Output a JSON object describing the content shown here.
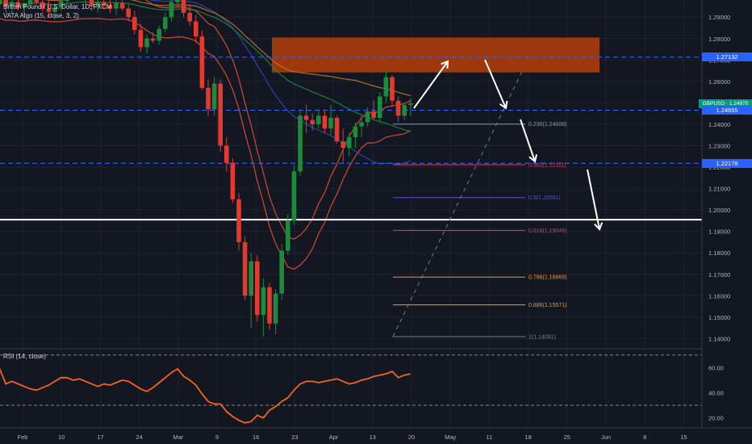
{
  "legend": {
    "line1": "British Pound / U.S. Dollar, 1D, FXCM",
    "line2": "VATA Algo (15, close, 3, 2)",
    "rsi": "RSI (14, close)"
  },
  "price_labels": [
    {
      "text": "1.27132",
      "value": 1.27132,
      "color": "#2962ff"
    },
    {
      "text": "GBPUSD · 1.24970",
      "value": 1.2497,
      "color": "#089981"
    },
    {
      "text": "1.24655",
      "value": 1.24655,
      "color": "#2962ff"
    },
    {
      "text": "1.22178",
      "value": 1.22178,
      "color": "#2962ff"
    }
  ],
  "chart_data": [
    {
      "type": "candlestick",
      "symbol": "GBPUSD",
      "x_labels": [
        "Feb",
        "10",
        "17",
        "24",
        "Mar",
        "9",
        "16",
        "23",
        "Apr",
        "13",
        "20",
        "May",
        "11",
        "18",
        "25",
        "Jun",
        "8",
        "15"
      ],
      "y_ticks": [
        1.29,
        1.28,
        1.27,
        1.26,
        1.25,
        1.24,
        1.23,
        1.22,
        1.21,
        1.2,
        1.19,
        1.18,
        1.17,
        1.16,
        1.15,
        1.14
      ],
      "ylim": [
        1.136,
        1.298
      ],
      "horizontal_lines": [
        {
          "value": 1.27132,
          "style": "dashed",
          "color": "#2962ff"
        },
        {
          "value": 1.24655,
          "style": "dashed",
          "color": "#2962ff"
        },
        {
          "value": 1.22178,
          "style": "dashed",
          "color": "#2962ff"
        },
        {
          "value": 1.1955,
          "style": "solid",
          "color": "#ffffff"
        }
      ],
      "supply_zone": {
        "from": 1.2642,
        "to": 1.2805,
        "color": "#a83c0a"
      },
      "fibonacci": [
        {
          "label": "0.236(1.24008)",
          "value": 1.24008,
          "color": "#9598a1"
        },
        {
          "label": "0.382(1.22111)",
          "value": 1.22111,
          "color": "#f23645"
        },
        {
          "label": "0.5(1.20581)",
          "value": 1.20581,
          "color": "#5b4fd6"
        },
        {
          "label": "0.618(1.19049)",
          "value": 1.19049,
          "color": "#f23645"
        },
        {
          "label": "0.786(1.16869)",
          "value": 1.16869,
          "color": "#ff9800"
        },
        {
          "label": "0.886(1.15571)",
          "value": 1.15571,
          "color": "#ff9800"
        },
        {
          "label": "1(1.14091)",
          "value": 1.14091,
          "color": "#787b86"
        }
      ],
      "candles": [
        {
          "o": 1.299,
          "h": 1.303,
          "l": 1.293,
          "c": 1.296
        },
        {
          "o": 1.296,
          "h": 1.301,
          "l": 1.293,
          "c": 1.2985
        },
        {
          "o": 1.2985,
          "h": 1.3,
          "l": 1.292,
          "c": 1.295
        },
        {
          "o": 1.295,
          "h": 1.302,
          "l": 1.292,
          "c": 1.297
        },
        {
          "o": 1.297,
          "h": 1.299,
          "l": 1.293,
          "c": 1.2945
        },
        {
          "o": 1.2945,
          "h": 1.297,
          "l": 1.291,
          "c": 1.296
        },
        {
          "o": 1.296,
          "h": 1.3,
          "l": 1.294,
          "c": 1.299
        },
        {
          "o": 1.299,
          "h": 1.303,
          "l": 1.296,
          "c": 1.297
        },
        {
          "o": 1.297,
          "h": 1.3,
          "l": 1.2925,
          "c": 1.294
        },
        {
          "o": 1.294,
          "h": 1.298,
          "l": 1.29,
          "c": 1.2925
        },
        {
          "o": 1.2925,
          "h": 1.296,
          "l": 1.289,
          "c": 1.2945
        },
        {
          "o": 1.2945,
          "h": 1.299,
          "l": 1.293,
          "c": 1.2975
        },
        {
          "o": 1.2975,
          "h": 1.302,
          "l": 1.296,
          "c": 1.3
        },
        {
          "o": 1.3,
          "h": 1.305,
          "l": 1.298,
          "c": 1.303
        },
        {
          "o": 1.303,
          "h": 1.306,
          "l": 1.299,
          "c": 1.301
        },
        {
          "o": 1.301,
          "h": 1.304,
          "l": 1.296,
          "c": 1.298
        },
        {
          "o": 1.298,
          "h": 1.3,
          "l": 1.293,
          "c": 1.295
        },
        {
          "o": 1.295,
          "h": 1.299,
          "l": 1.292,
          "c": 1.297
        },
        {
          "o": 1.297,
          "h": 1.301,
          "l": 1.294,
          "c": 1.2955
        },
        {
          "o": 1.2955,
          "h": 1.299,
          "l": 1.292,
          "c": 1.294
        },
        {
          "o": 1.294,
          "h": 1.298,
          "l": 1.291,
          "c": 1.2965
        },
        {
          "o": 1.2965,
          "h": 1.3,
          "l": 1.293,
          "c": 1.294
        },
        {
          "o": 1.294,
          "h": 1.296,
          "l": 1.288,
          "c": 1.29
        },
        {
          "o": 1.29,
          "h": 1.293,
          "l": 1.282,
          "c": 1.284
        },
        {
          "o": 1.284,
          "h": 1.287,
          "l": 1.274,
          "c": 1.276
        },
        {
          "o": 1.276,
          "h": 1.282,
          "l": 1.273,
          "c": 1.28
        },
        {
          "o": 1.28,
          "h": 1.283,
          "l": 1.278,
          "c": 1.279
        },
        {
          "o": 1.279,
          "h": 1.286,
          "l": 1.277,
          "c": 1.2845
        },
        {
          "o": 1.2845,
          "h": 1.292,
          "l": 1.283,
          "c": 1.29
        },
        {
          "o": 1.29,
          "h": 1.299,
          "l": 1.288,
          "c": 1.297
        },
        {
          "o": 1.297,
          "h": 1.306,
          "l": 1.295,
          "c": 1.301
        },
        {
          "o": 1.301,
          "h": 1.304,
          "l": 1.29,
          "c": 1.292
        },
        {
          "o": 1.292,
          "h": 1.296,
          "l": 1.286,
          "c": 1.288
        },
        {
          "o": 1.288,
          "h": 1.291,
          "l": 1.278,
          "c": 1.281
        },
        {
          "o": 1.281,
          "h": 1.284,
          "l": 1.256,
          "c": 1.257
        },
        {
          "o": 1.257,
          "h": 1.261,
          "l": 1.244,
          "c": 1.247
        },
        {
          "o": 1.247,
          "h": 1.262,
          "l": 1.244,
          "c": 1.259
        },
        {
          "o": 1.259,
          "h": 1.261,
          "l": 1.227,
          "c": 1.23
        },
        {
          "o": 1.23,
          "h": 1.234,
          "l": 1.218,
          "c": 1.222
        },
        {
          "o": 1.222,
          "h": 1.224,
          "l": 1.203,
          "c": 1.205
        },
        {
          "o": 1.205,
          "h": 1.208,
          "l": 1.181,
          "c": 1.185
        },
        {
          "o": 1.185,
          "h": 1.188,
          "l": 1.158,
          "c": 1.16
        },
        {
          "o": 1.16,
          "h": 1.18,
          "l": 1.145,
          "c": 1.176
        },
        {
          "o": 1.176,
          "h": 1.179,
          "l": 1.148,
          "c": 1.151
        },
        {
          "o": 1.151,
          "h": 1.168,
          "l": 1.141,
          "c": 1.164
        },
        {
          "o": 1.164,
          "h": 1.166,
          "l": 1.144,
          "c": 1.147
        },
        {
          "o": 1.147,
          "h": 1.163,
          "l": 1.142,
          "c": 1.161
        },
        {
          "o": 1.161,
          "h": 1.184,
          "l": 1.158,
          "c": 1.181
        },
        {
          "o": 1.181,
          "h": 1.198,
          "l": 1.179,
          "c": 1.195
        },
        {
          "o": 1.195,
          "h": 1.221,
          "l": 1.193,
          "c": 1.218
        },
        {
          "o": 1.218,
          "h": 1.247,
          "l": 1.216,
          "c": 1.244
        },
        {
          "o": 1.244,
          "h": 1.249,
          "l": 1.236,
          "c": 1.242
        },
        {
          "o": 1.242,
          "h": 1.245,
          "l": 1.237,
          "c": 1.24
        },
        {
          "o": 1.24,
          "h": 1.247,
          "l": 1.238,
          "c": 1.244
        },
        {
          "o": 1.244,
          "h": 1.247,
          "l": 1.236,
          "c": 1.238
        },
        {
          "o": 1.238,
          "h": 1.249,
          "l": 1.235,
          "c": 1.243
        },
        {
          "o": 1.243,
          "h": 1.244,
          "l": 1.231,
          "c": 1.232
        },
        {
          "o": 1.232,
          "h": 1.238,
          "l": 1.222,
          "c": 1.229
        },
        {
          "o": 1.229,
          "h": 1.236,
          "l": 1.225,
          "c": 1.234
        },
        {
          "o": 1.234,
          "h": 1.241,
          "l": 1.229,
          "c": 1.239
        },
        {
          "o": 1.239,
          "h": 1.244,
          "l": 1.234,
          "c": 1.241
        },
        {
          "o": 1.241,
          "h": 1.248,
          "l": 1.239,
          "c": 1.246
        },
        {
          "o": 1.246,
          "h": 1.251,
          "l": 1.242,
          "c": 1.243
        },
        {
          "o": 1.243,
          "h": 1.255,
          "l": 1.241,
          "c": 1.253
        },
        {
          "o": 1.253,
          "h": 1.265,
          "l": 1.25,
          "c": 1.262
        },
        {
          "o": 1.262,
          "h": 1.263,
          "l": 1.248,
          "c": 1.251
        },
        {
          "o": 1.251,
          "h": 1.253,
          "l": 1.241,
          "c": 1.244
        },
        {
          "o": 1.244,
          "h": 1.25,
          "l": 1.242,
          "c": 1.249
        },
        {
          "o": 1.249,
          "h": 1.252,
          "l": 1.244,
          "c": 1.2497
        }
      ],
      "rsi": {
        "y_ticks": [
          60.0,
          40.0,
          20.0
        ],
        "ylim": [
          12,
          75
        ],
        "levels": [
          70,
          30
        ],
        "values": [
          55,
          59,
          47,
          49,
          47,
          45,
          43,
          42,
          44,
          46,
          49,
          52,
          52,
          50,
          51,
          49,
          47,
          45,
          47,
          46,
          48,
          50,
          49,
          46,
          43,
          41,
          44,
          48,
          52,
          56,
          59,
          53,
          50,
          46,
          39,
          33,
          31,
          31,
          25,
          21,
          18,
          16,
          17,
          22,
          20,
          26,
          29,
          33,
          36,
          42,
          47,
          49,
          49,
          48,
          49,
          50,
          51,
          49,
          47,
          48,
          50,
          51,
          53,
          54,
          55,
          57,
          52,
          54,
          55
        ]
      }
    }
  ]
}
